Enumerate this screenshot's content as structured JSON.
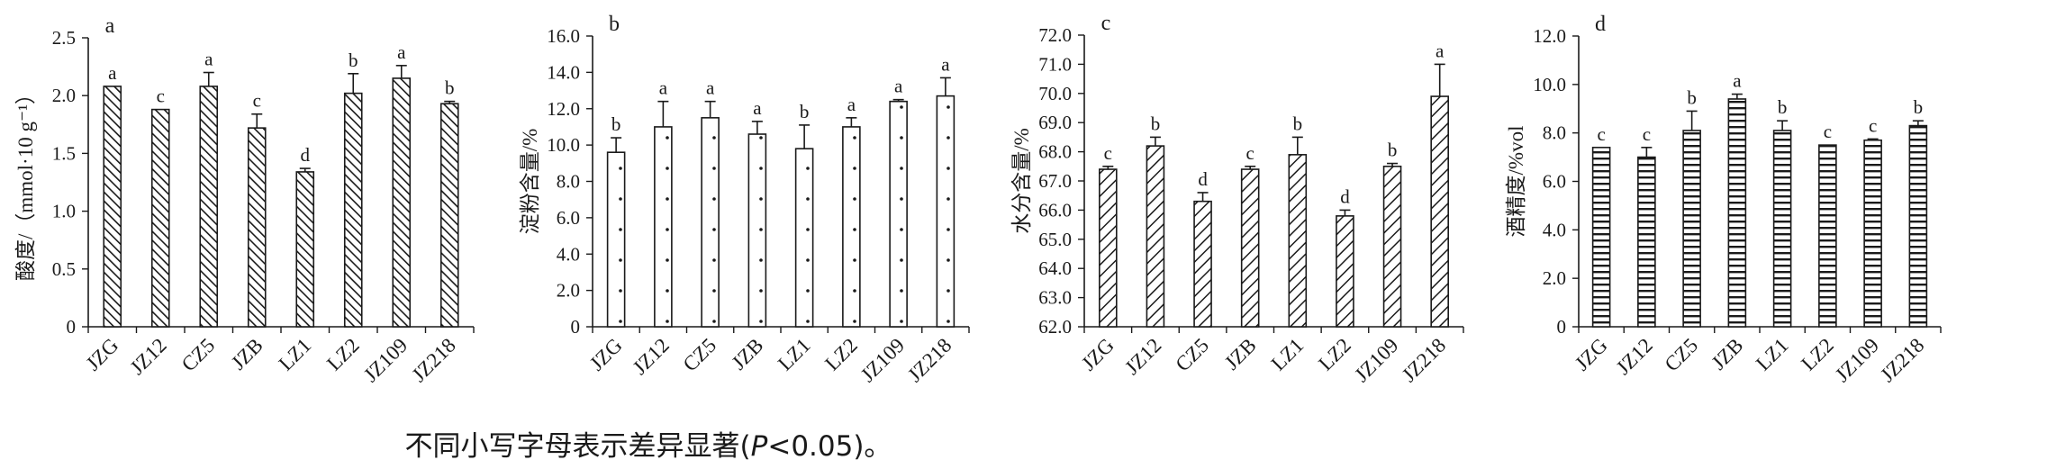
{
  "colors": {
    "ink": "#1a1a1a",
    "background": "#ffffff"
  },
  "footnote": {
    "before": "不同小写字母表示差异显著(",
    "italic": "P",
    "after": "<0.05)。"
  },
  "chart_data": [
    {
      "type": "bar",
      "panel_letter": "a",
      "pattern": "diagonal-dense",
      "ylabel": "酸度/（mmol·10 g⁻¹）",
      "ylim": [
        0,
        2.5
      ],
      "yticks": [
        "0",
        "0.5",
        "1.0",
        "1.5",
        "2.0",
        "2.5"
      ],
      "tick_values": [
        0,
        0.5,
        1.0,
        1.5,
        2.0,
        2.5
      ],
      "categories": [
        "JZG",
        "JZ12",
        "CZ5",
        "JZB",
        "LZ1",
        "LZ2",
        "JZ109",
        "JZ218"
      ],
      "values": [
        2.08,
        1.88,
        2.08,
        1.72,
        1.34,
        2.02,
        2.15,
        1.93
      ],
      "errors": [
        0.0,
        0.0,
        0.12,
        0.12,
        0.03,
        0.17,
        0.11,
        0.02
      ],
      "letters": [
        "a",
        "c",
        "a",
        "c",
        "d",
        "b",
        "a",
        "b"
      ]
    },
    {
      "type": "bar",
      "panel_letter": "b",
      "pattern": "dots",
      "ylabel": "淀粉含量/%",
      "ylim": [
        0,
        16
      ],
      "yticks": [
        "0",
        "2.0",
        "4.0",
        "6.0",
        "8.0",
        "10.0",
        "12.0",
        "14.0",
        "16.0"
      ],
      "tick_values": [
        0,
        2,
        4,
        6,
        8,
        10,
        12,
        14,
        16
      ],
      "categories": [
        "JZG",
        "JZ12",
        "CZ5",
        "JZB",
        "LZ1",
        "LZ2",
        "JZ109",
        "JZ218"
      ],
      "values": [
        9.6,
        11.0,
        11.5,
        10.6,
        9.8,
        11.0,
        12.4,
        12.7
      ],
      "errors": [
        0.8,
        1.4,
        0.9,
        0.7,
        1.3,
        0.5,
        0.1,
        1.0
      ],
      "letters": [
        "b",
        "a",
        "a",
        "a",
        "b",
        "a",
        "a",
        "a"
      ]
    },
    {
      "type": "bar",
      "panel_letter": "c",
      "pattern": "diagonal-wide",
      "ylabel": "水分含量/%",
      "ylim": [
        62,
        72
      ],
      "yticks": [
        "62.0",
        "63.0",
        "64.0",
        "65.0",
        "66.0",
        "67.0",
        "68.0",
        "69.0",
        "70.0",
        "71.0",
        "72.0"
      ],
      "tick_values": [
        62,
        63,
        64,
        65,
        66,
        67,
        68,
        69,
        70,
        71,
        72
      ],
      "categories": [
        "JZG",
        "JZ12",
        "CZ5",
        "JZB",
        "LZ1",
        "LZ2",
        "JZ109",
        "JZ218"
      ],
      "values": [
        67.4,
        68.2,
        66.3,
        67.4,
        67.9,
        65.8,
        67.5,
        69.9
      ],
      "errors": [
        0.1,
        0.3,
        0.3,
        0.1,
        0.6,
        0.2,
        0.1,
        1.1
      ],
      "letters": [
        "c",
        "b",
        "d",
        "c",
        "b",
        "d",
        "b",
        "a"
      ]
    },
    {
      "type": "bar",
      "panel_letter": "d",
      "pattern": "horizontal-lines",
      "ylabel": "酒精度/%vol",
      "ylim": [
        0,
        12
      ],
      "yticks": [
        "0",
        "2.0",
        "4.0",
        "6.0",
        "8.0",
        "10.0",
        "12.0"
      ],
      "tick_values": [
        0,
        2,
        4,
        6,
        8,
        10,
        12
      ],
      "categories": [
        "JZG",
        "JZ12",
        "CZ5",
        "JZB",
        "LZ1",
        "LZ2",
        "JZ109",
        "JZ218"
      ],
      "values": [
        7.4,
        7.0,
        8.1,
        9.4,
        8.1,
        7.5,
        7.7,
        8.3
      ],
      "errors": [
        0.0,
        0.4,
        0.8,
        0.2,
        0.4,
        0.0,
        0.05,
        0.2
      ],
      "letters": [
        "c",
        "c",
        "b",
        "a",
        "b",
        "c",
        "c",
        "b"
      ]
    }
  ]
}
